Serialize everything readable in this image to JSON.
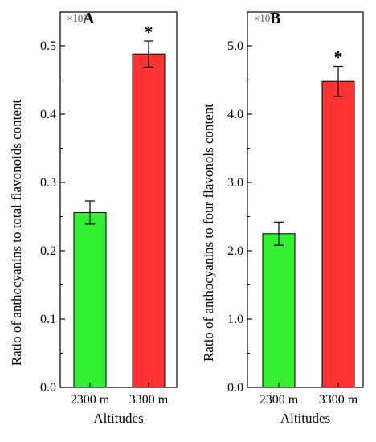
{
  "chart_data": [
    {
      "type": "bar",
      "panel": "A",
      "categories": [
        "2300 m",
        "3300 m"
      ],
      "values": [
        0.256,
        0.488
      ],
      "errors": [
        0.017,
        0.019
      ],
      "significance": [
        "",
        "*"
      ],
      "colors": [
        "#33ee33",
        "#ff3333"
      ],
      "xlabel": "Altitudes",
      "ylabel": "Ratio of anthocyanins to total  flavonoids content",
      "scale_label": "×10²",
      "yticks": [
        "0.0",
        "0.1",
        "0.2",
        "0.3",
        "0.4",
        "0.5"
      ],
      "ylim": [
        0,
        0.5
      ]
    },
    {
      "type": "bar",
      "panel": "B",
      "categories": [
        "2300 m",
        "3300 m"
      ],
      "values": [
        2.25,
        4.48
      ],
      "errors": [
        0.17,
        0.22
      ],
      "significance": [
        "",
        "*"
      ],
      "colors": [
        "#33ee33",
        "#ff3333"
      ],
      "xlabel": "Altitudes",
      "ylabel": "Ratio of anthocyanins to four  flavonols content",
      "scale_label": "×10²",
      "yticks": [
        "0.0",
        "1.0",
        "2.0",
        "3.0",
        "4.0",
        "5.0"
      ],
      "ylim": [
        0,
        5.0
      ]
    }
  ]
}
